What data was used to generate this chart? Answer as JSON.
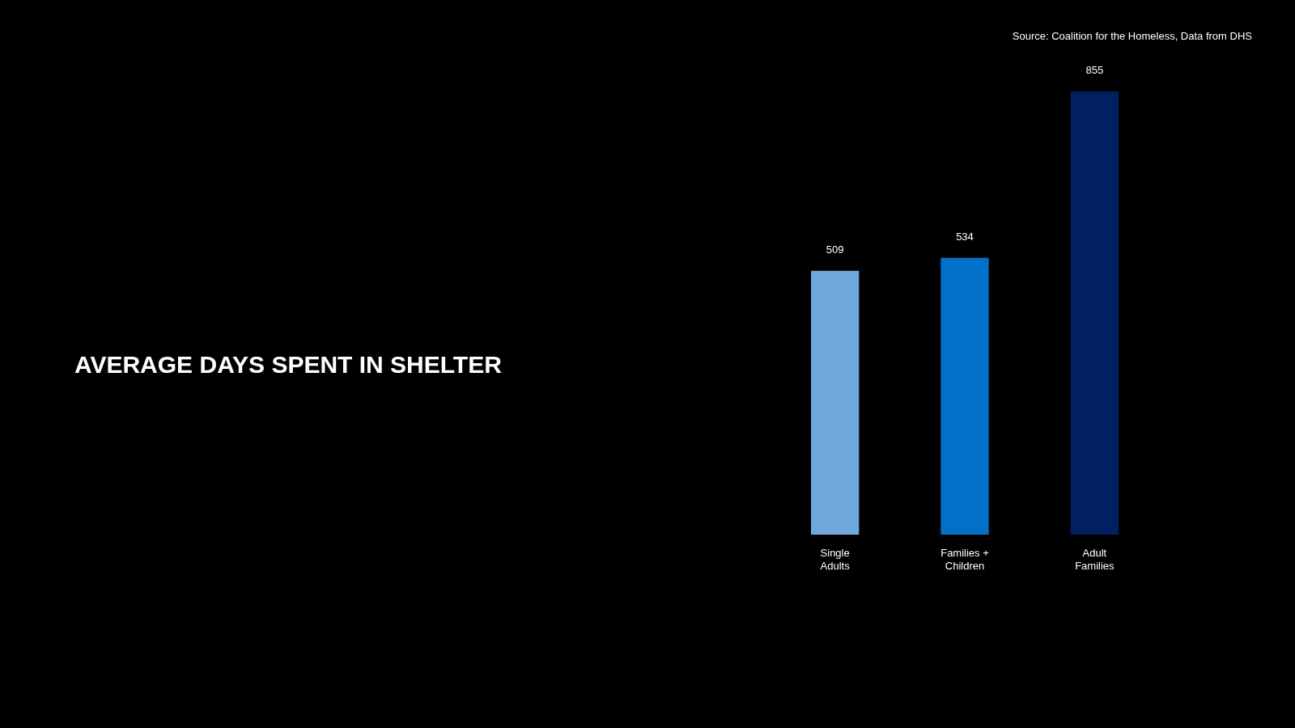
{
  "chart_data": {
    "type": "bar",
    "title": "AVERAGE DAYS SPENT IN SHELTER",
    "categories": [
      "Single Adults",
      "Families + Children",
      "Adult Families"
    ],
    "values": [
      509,
      534,
      855
    ],
    "colors": [
      "#6fa8dc",
      "#0070c9",
      "#002060"
    ],
    "data_labels": true,
    "annotations": [
      "Source: Coalition for the Homeless, Data from DHS"
    ]
  }
}
